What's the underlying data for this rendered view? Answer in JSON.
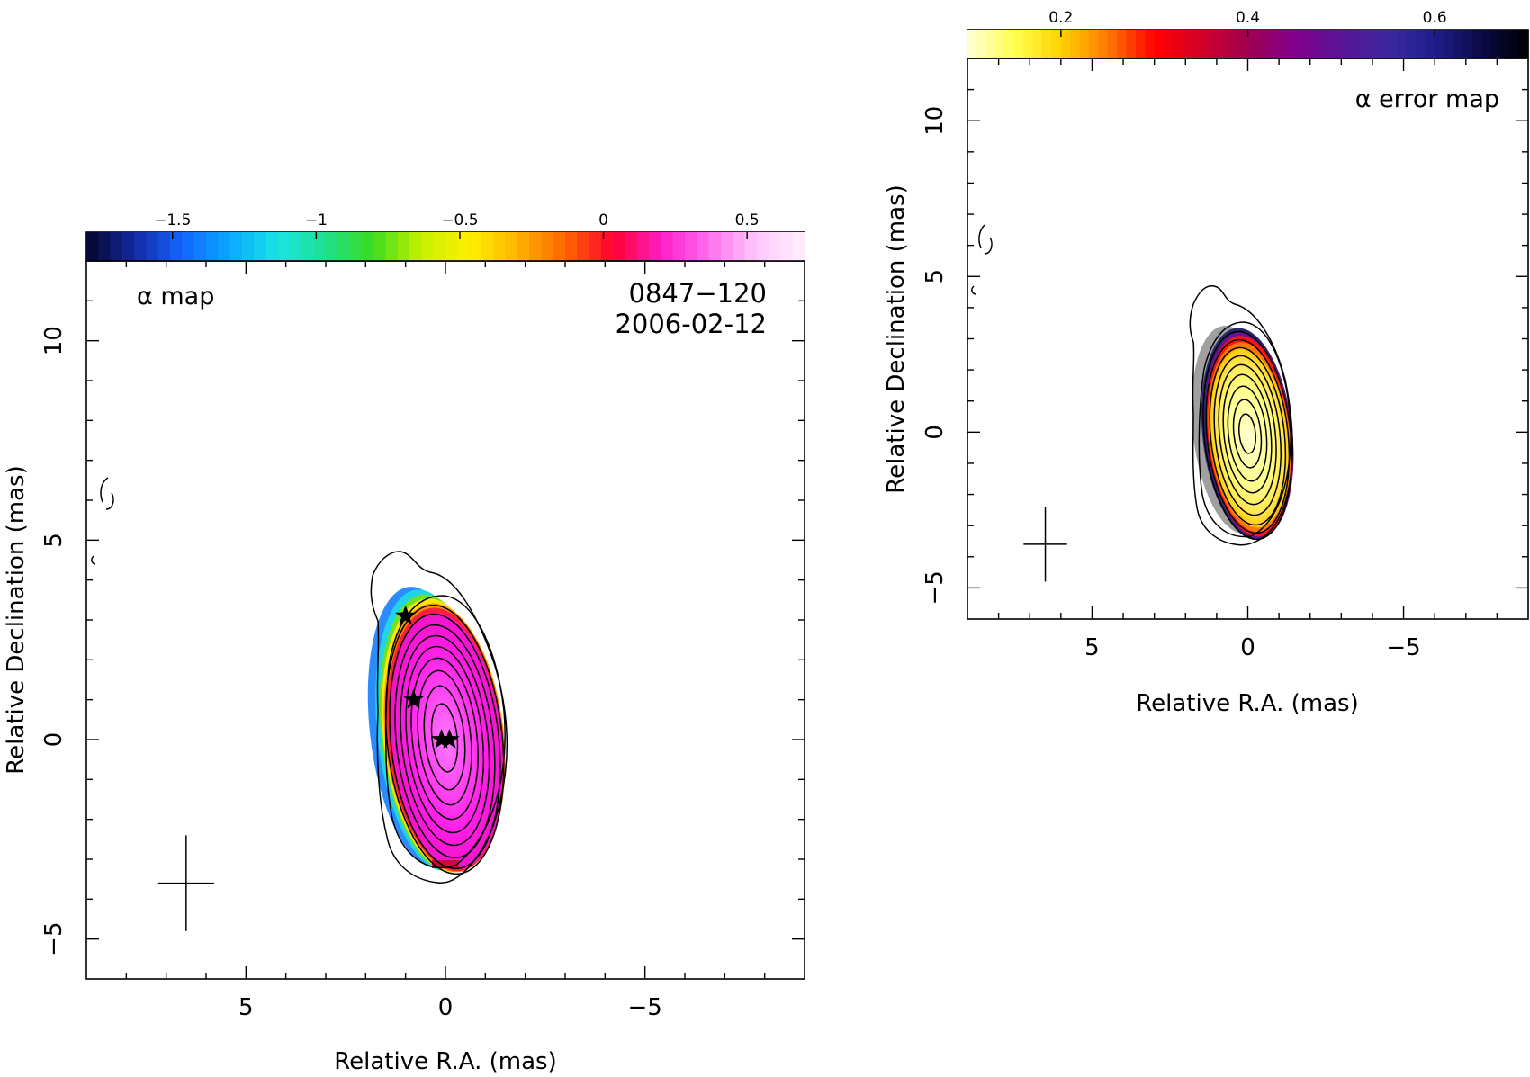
{
  "chart_data": [
    {
      "type": "heatmap",
      "panel_label": "α map",
      "source_name": "0847−120",
      "observation_date": "2006-02-12",
      "xlabel": "Relative R.A. (mas)",
      "ylabel": "Relative Declination (mas)",
      "xlim": [
        9,
        -9
      ],
      "ylim": [
        -6,
        12
      ],
      "x_ticks": [
        5,
        0,
        -5
      ],
      "x_tick_labels": [
        "5",
        "0",
        "−5"
      ],
      "y_ticks": [
        10,
        5,
        0,
        -5
      ],
      "y_tick_labels": [
        "10",
        "5",
        "0",
        "−5"
      ],
      "colorbar": {
        "range": [
          -1.8,
          0.7
        ],
        "ticks": [
          -1.5,
          -1,
          -0.5,
          0,
          0.5
        ],
        "tick_labels": [
          "−1.5",
          "−1",
          "−0.5",
          "0",
          "0.5"
        ],
        "colormap": [
          "#05052a",
          "#1428a0",
          "#1466ff",
          "#0aa8ff",
          "#19e4e4",
          "#1ee18c",
          "#3cdc1e",
          "#c8f000",
          "#fff000",
          "#ffb400",
          "#ff6400",
          "#ff0032",
          "#ff1ec8",
          "#ff6ef0",
          "#ffc8fa",
          "#fff0ff"
        ],
        "position": "top"
      },
      "components": [
        {
          "ra": -0.1,
          "dec": 0.0
        },
        {
          "ra": 0.1,
          "dec": 0.0
        },
        {
          "ra": 0.8,
          "dec": 1.0
        },
        {
          "ra": 1.0,
          "dec": 3.1
        }
      ],
      "beam_cross": {
        "ra": 6.5,
        "dec": -3.6,
        "ra_half_width": 0.7,
        "dec_half_length": 1.2
      }
    },
    {
      "type": "heatmap",
      "panel_label": "α error map",
      "xlabel": "Relative R.A. (mas)",
      "ylabel": "Relative Declination (mas)",
      "xlim": [
        9,
        -9
      ],
      "ylim": [
        -6,
        12
      ],
      "x_ticks": [
        5,
        0,
        -5
      ],
      "x_tick_labels": [
        "5",
        "0",
        "−5"
      ],
      "y_ticks": [
        10,
        5,
        0,
        -5
      ],
      "y_tick_labels": [
        "10",
        "5",
        "0",
        "−5"
      ],
      "colorbar": {
        "range": [
          0.1,
          0.7
        ],
        "ticks": [
          0.2,
          0.4,
          0.6
        ],
        "tick_labels": [
          "0.2",
          "0.4",
          "0.6"
        ],
        "colormap": [
          "#ffffdc",
          "#ffff50",
          "#ffd200",
          "#ff7800",
          "#ff0000",
          "#d20028",
          "#a00050",
          "#82008c",
          "#5a1496",
          "#3c28a0",
          "#1e1e8c",
          "#0a0a46",
          "#000000"
        ],
        "position": "top"
      },
      "beam_cross": {
        "ra": 6.5,
        "dec": -3.6,
        "ra_half_width": 0.7,
        "dec_half_length": 1.2
      }
    }
  ]
}
